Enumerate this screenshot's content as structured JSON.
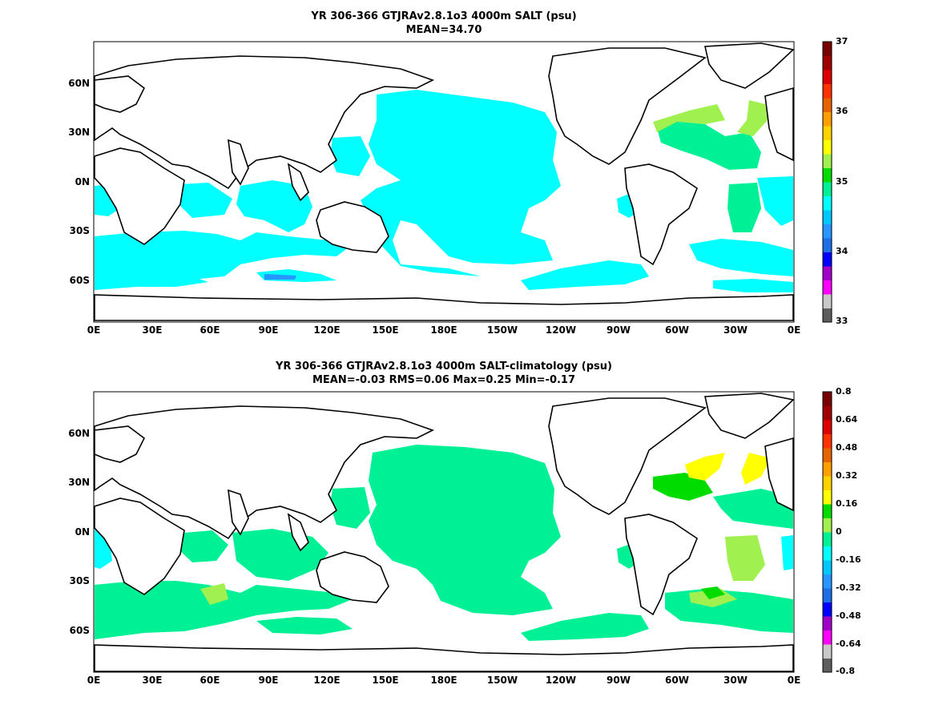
{
  "panels": [
    {
      "title": "YR 306-366 GTJRAv2.8.1o3 4000m SALT (psu)",
      "subtitle": "MEAN=34.70",
      "lat_ticks": [
        "60N",
        "30N",
        "0N",
        "30S",
        "60S"
      ],
      "lon_ticks": [
        "0E",
        "30E",
        "60E",
        "90E",
        "120E",
        "150E",
        "180E",
        "150W",
        "120W",
        "90W",
        "60W",
        "30W",
        "0E"
      ],
      "colorbar_labels": [
        "37",
        "36",
        "35",
        "34",
        "33"
      ],
      "colorbar_colors": [
        "#5e5e5e",
        "#c8c8c8",
        "#ff00ff",
        "#a000c8",
        "#0000ff",
        "#1e6ee6",
        "#2896ff",
        "#00c8ff",
        "#00ffff",
        "#00f096",
        "#00dc00",
        "#a0f050",
        "#ffff00",
        "#ffd200",
        "#ffa000",
        "#e66400",
        "#ff3200",
        "#dc0000",
        "#a00000",
        "#780000"
      ],
      "field_colors": {
        "main": "#00ffff",
        "high": "#00f096",
        "higher": "#a0f050",
        "low": "#2896ff"
      }
    },
    {
      "title": "YR 306-366 GTJRAv2.8.1o3 4000m SALT-climatology (psu)",
      "subtitle": "MEAN=-0.03   RMS=0.06   Max=0.25   Min=-0.17",
      "lat_ticks": [
        "60N",
        "30N",
        "0N",
        "30S",
        "60S"
      ],
      "lon_ticks": [
        "0E",
        "30E",
        "60E",
        "90E",
        "120E",
        "150E",
        "180E",
        "150W",
        "120W",
        "90W",
        "60W",
        "30W",
        "0E"
      ],
      "colorbar_labels": [
        "0.8",
        "0.64",
        "0.48",
        "0.32",
        "0.16",
        "0",
        "-0.16",
        "-0.32",
        "-0.48",
        "-0.64",
        "-0.8"
      ],
      "colorbar_colors": [
        "#5e5e5e",
        "#c8c8c8",
        "#ff00ff",
        "#a000c8",
        "#0000ff",
        "#1e6ee6",
        "#2896ff",
        "#00c8ff",
        "#00ffff",
        "#00f096",
        "#a0f050",
        "#00dc00",
        "#ffff00",
        "#ffd200",
        "#ffa000",
        "#e66400",
        "#ff3200",
        "#dc0000",
        "#a00000",
        "#780000"
      ],
      "field_colors": {
        "main": "#00f096",
        "high": "#a0f050",
        "higher": "#00dc00",
        "peak": "#ffff00",
        "low": "#00ffff"
      }
    }
  ]
}
